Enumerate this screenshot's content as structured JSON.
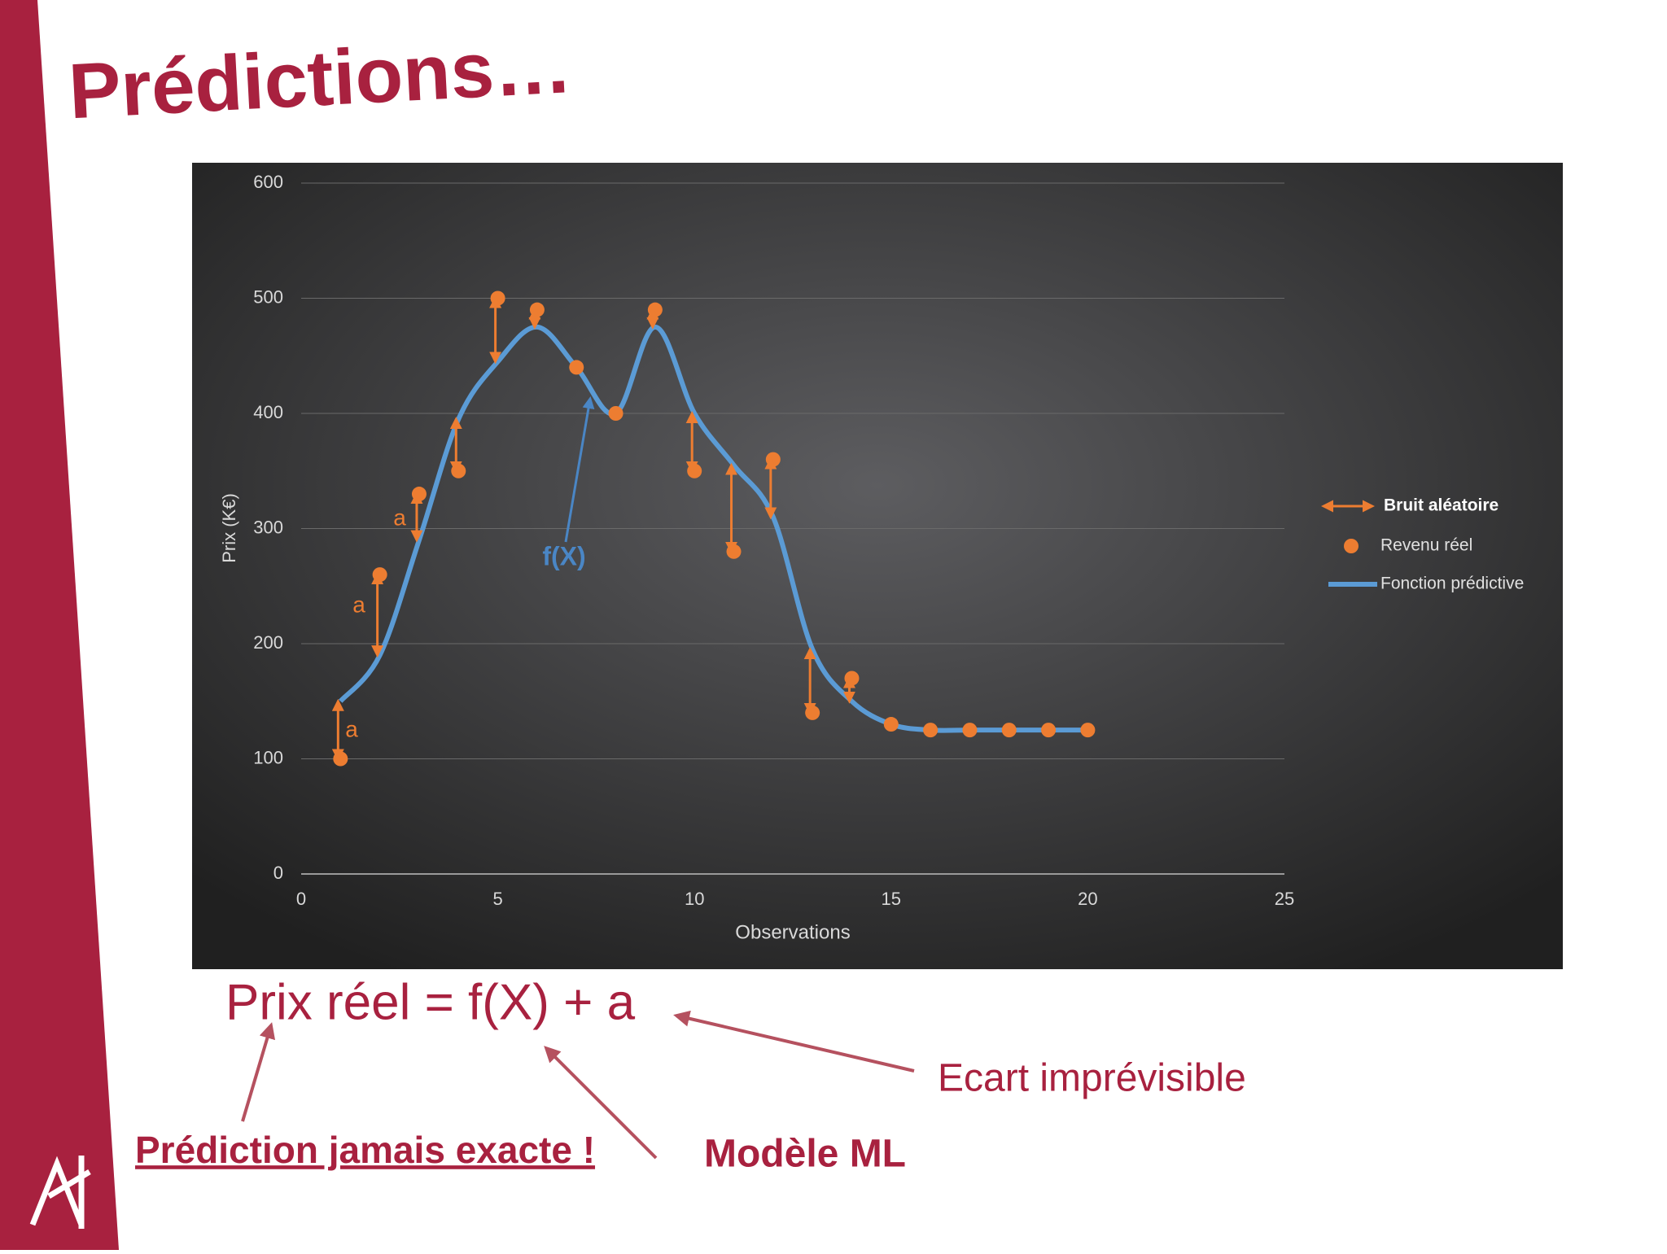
{
  "slide": {
    "title": "Prédictions…",
    "formula": "Prix réel = f(X) + a",
    "note_error": "Ecart imprévisible",
    "note_model": "Modèle ML",
    "note_exact": "Prédiction jamais exacte !"
  },
  "chart_data": {
    "type": "scatter-line",
    "xlabel": "Observations",
    "ylabel": "Prix  (K€)",
    "x": [
      1,
      2,
      3,
      4,
      5,
      6,
      7,
      8,
      9,
      10,
      11,
      12,
      13,
      14,
      15,
      16,
      17,
      18,
      19,
      20
    ],
    "series": [
      {
        "name": "Bruit aléatoire",
        "color": "#ed7d31"
      },
      {
        "name": "Revenu réel",
        "color": "#ed7d31",
        "values": [
          100,
          260,
          330,
          350,
          500,
          490,
          440,
          400,
          490,
          350,
          280,
          360,
          140,
          170,
          130,
          125,
          125,
          125,
          125,
          125
        ]
      },
      {
        "name": "Fonction prédictive",
        "color": "#5b9bd5",
        "values": [
          150,
          190,
          290,
          395,
          445,
          475,
          440,
          400,
          475,
          400,
          355,
          310,
          195,
          150,
          130,
          125,
          125,
          125,
          125,
          125
        ]
      }
    ],
    "annotations": [
      "a",
      "a",
      "a",
      "f(X)"
    ],
    "xlim": [
      0,
      25
    ],
    "xticks": [
      0,
      5,
      10,
      15,
      20,
      25
    ],
    "ylim": [
      0,
      600
    ],
    "yticks": [
      0,
      100,
      200,
      300,
      400,
      500,
      600
    ],
    "grid": true
  }
}
